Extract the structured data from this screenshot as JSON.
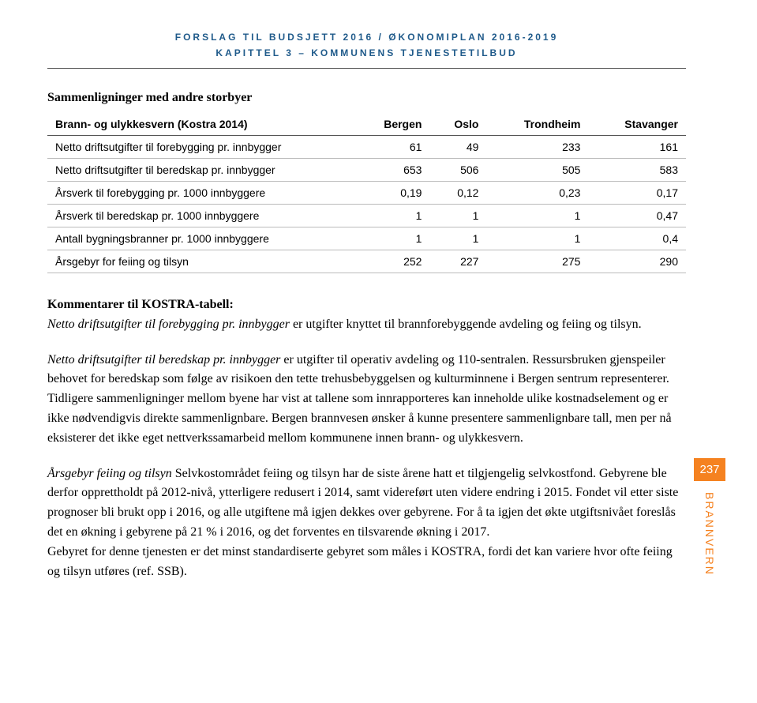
{
  "header": {
    "line1": "FORSLAG TIL BUDSJETT 2016 / ØKONOMIPLAN 2016-2019",
    "line2": "KAPITTEL 3 – KOMMUNENS TJENESTETILBUD"
  },
  "section_title": "Sammenligninger med andre storbyer",
  "table": {
    "columns": [
      "Brann- og ulykkesvern (Kostra 2014)",
      "Bergen",
      "Oslo",
      "Trondheim",
      "Stavanger"
    ],
    "rows": [
      [
        "Netto driftsutgifter til forebygging pr. innbygger",
        "61",
        "49",
        "233",
        "161"
      ],
      [
        "Netto driftsutgifter til beredskap pr. innbygger",
        "653",
        "506",
        "505",
        "583"
      ],
      [
        "Årsverk til forebygging pr. 1000 innbyggere",
        "0,19",
        "0,12",
        "0,23",
        "0,17"
      ],
      [
        "Årsverk til beredskap pr. 1000 innbyggere",
        "1",
        "1",
        "1",
        "0,47"
      ],
      [
        "Antall bygningsbranner pr. 1000 innbyggere",
        "1",
        "1",
        "1",
        "0,4"
      ],
      [
        "Årsgebyr for feiing og tilsyn",
        "252",
        "227",
        "275",
        "290"
      ]
    ]
  },
  "kostra_title": "Kommentarer til KOSTRA-tabell:",
  "p1_italic": "Netto driftsutgifter til forebygging pr. innbygger",
  "p1_rest": " er utgifter knyttet til brannforebyggende avdeling og feiing og tilsyn.",
  "p2_italic": "Netto driftsutgifter til beredskap pr. innbygger",
  "p2_rest": " er utgifter til operativ avdeling og 110-sentralen. Ressursbruken gjenspeiler behovet for beredskap som følge av risikoen den tette trehusbebyggelsen og kulturminnene i Bergen sentrum representerer. Tidligere sammenligninger mellom byene har vist at tallene som innrapporteres kan inneholde ulike kostnadselement og er ikke nødvendigvis direkte sammenlignbare. Bergen brannvesen ønsker å kunne presentere sammenlignbare tall, men per nå eksisterer det ikke eget nettverkssamarbeid mellom kommunene innen brann- og ulykkesvern.",
  "p3_italic": "Årsgebyr feiing og tilsyn",
  "p3_rest": "  Selvkostområdet feiing og tilsyn har de siste årene hatt et tilgjengelig selvkostfond. Gebyrene ble derfor opprettholdt på 2012-nivå, ytterligere redusert i 2014, samt videreført uten videre endring i 2015. Fondet vil etter siste prognoser bli brukt opp i 2016, og alle utgiftene må igjen dekkes over gebyrene. For å ta igjen det økte utgiftsnivået foreslås det en økning i gebyrene på 21 % i 2016, og det forventes en tilsvarende økning  i 2017.",
  "p3_line2": "Gebyret for denne tjenesten er det minst standardiserte gebyret som måles i KOSTRA, fordi det kan variere hvor ofte feiing og tilsyn utføres (ref. SSB).",
  "side": {
    "page_num": "237",
    "label": "BRANNVERN"
  },
  "colors": {
    "header_text": "#1f5a8a",
    "accent": "#f58220",
    "text": "#000000",
    "background": "#ffffff"
  }
}
